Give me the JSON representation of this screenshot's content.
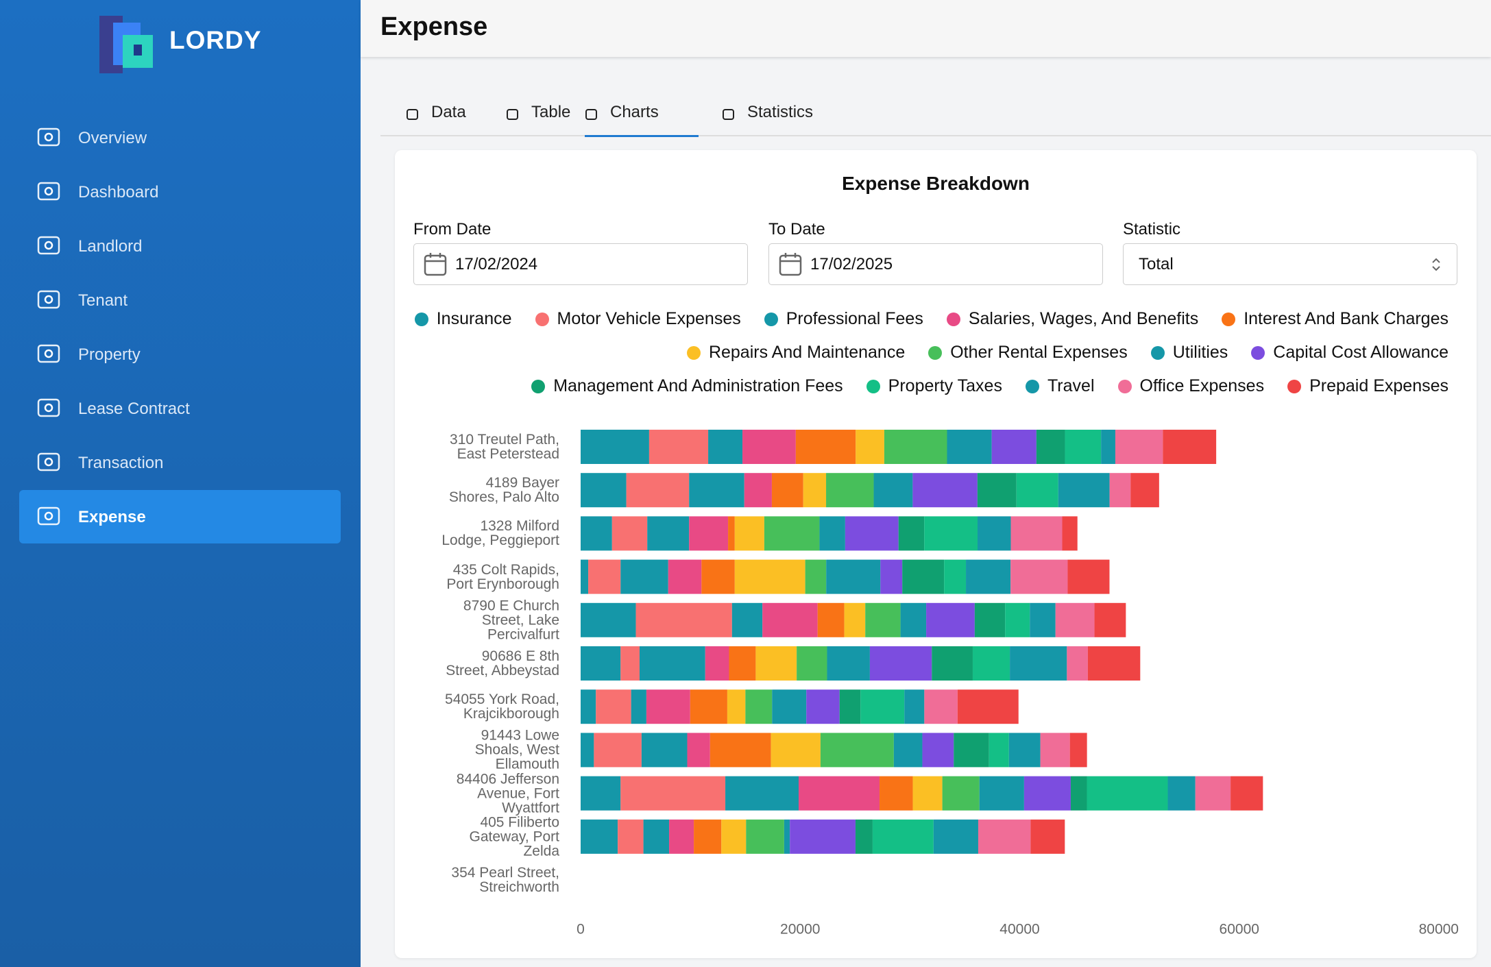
{
  "app": {
    "brand": "LORDY",
    "nav": [
      "Overview",
      "Dashboard",
      "Landlord",
      "Tenant",
      "Property",
      "Lease Contract",
      "Transaction",
      "Expense"
    ],
    "active": 7
  },
  "header": {
    "title": "Expense"
  },
  "tabs": {
    "items": [
      "Data",
      "Table",
      "Charts",
      "Statistics"
    ],
    "active": 2
  },
  "filters": {
    "from_label": "From Date",
    "from_value": "17/02/2024",
    "to_label": "To Date",
    "to_value": "17/02/2025",
    "statistic_label": "Statistic",
    "statistic_value": "Total"
  },
  "chart_data": {
    "type": "stacked-bar-horizontal",
    "title": "Expense Breakdown",
    "categories": [
      "310 Treutel Path, East Peterstead",
      "4189 Bayer Shores, Palo Alto",
      "1328 Milford Lodge, Peggieport",
      "435 Colt Rapids, Port Erynborough",
      "8790 E Church Street, Lake Percivalfurt",
      "90686 E 8th Street, Abbeystad",
      "54055 York Road, Krajcikborough",
      "91443 Lowe Shoals, West Ellamouth",
      "84406 Jefferson Avenue, Fort Wyattfort",
      "405 Filiberto Gateway, Port Zelda",
      "354 Pearl Street, Streichworth"
    ],
    "xlim": [
      0,
      80000
    ],
    "xticks": [
      0,
      20000,
      40000,
      60000,
      80000
    ],
    "grid": false,
    "series": [
      {
        "name": "Insurance",
        "color": "#1597a8",
        "values": [
          6240,
          4160,
          2860,
          690,
          5030,
          3640,
          1390,
          1210,
          3640,
          3380,
          0
        ]
      },
      {
        "name": "Motor Vehicle Expenses",
        "color": "#f87171",
        "values": [
          5380,
          5720,
          3210,
          2950,
          8760,
          1730,
          3210,
          4340,
          9540,
          2340,
          0
        ]
      },
      {
        "name": "Professional Fees",
        "color": "#1597a8",
        "values": [
          3120,
          5030,
          3810,
          4340,
          2770,
          5980,
          1390,
          4160,
          6680,
          2340,
          0
        ]
      },
      {
        "name": "Salaries, Wages, And Benefits",
        "color": "#e84a85",
        "values": [
          4860,
          2510,
          3550,
          3030,
          5030,
          2170,
          3990,
          2080,
          7370,
          2250,
          0
        ]
      },
      {
        "name": "Interest And Bank Charges",
        "color": "#f97316",
        "values": [
          5460,
          2860,
          610,
          3030,
          2430,
          2430,
          3380,
          5550,
          3030,
          2510,
          0
        ]
      },
      {
        "name": "Repairs And Maintenance",
        "color": "#fbbf24",
        "values": [
          2600,
          2080,
          2690,
          6420,
          1910,
          3730,
          1650,
          4510,
          2690,
          2250,
          0
        ]
      },
      {
        "name": "Other Rental Expenses",
        "color": "#47bf5a",
        "values": [
          5720,
          4340,
          5030,
          1910,
          3210,
          2770,
          2430,
          6680,
          3380,
          3470,
          0
        ]
      },
      {
        "name": "Utilities",
        "color": "#1597a8",
        "values": [
          4070,
          3550,
          2340,
          4940,
          2340,
          3900,
          3120,
          2600,
          4070,
          520,
          0
        ]
      },
      {
        "name": "Capital Cost Allowance",
        "color": "#7c4ddf",
        "values": [
          4070,
          5900,
          4860,
          1990,
          4420,
          5640,
          3030,
          2860,
          4250,
          5980,
          0
        ]
      },
      {
        "name": "Management And Administration Fees",
        "color": "#10a070",
        "values": [
          2600,
          3550,
          2340,
          3810,
          2770,
          3730,
          1910,
          3210,
          1470,
          1560,
          0
        ]
      },
      {
        "name": "Property Taxes",
        "color": "#14bf86",
        "values": [
          3290,
          3810,
          4860,
          1990,
          2250,
          3380,
          3990,
          1820,
          7370,
          5550,
          0
        ]
      },
      {
        "name": "Travel",
        "color": "#1597a8",
        "values": [
          1300,
          4680,
          3030,
          4070,
          2340,
          5200,
          1820,
          2860,
          2510,
          4070,
          0
        ]
      },
      {
        "name": "Office Expenses",
        "color": "#f06d97",
        "values": [
          4330,
          1910,
          4680,
          5200,
          3550,
          1910,
          3030,
          2690,
          3210,
          4770,
          0
        ]
      },
      {
        "name": "Prepaid Expenses",
        "color": "#ef4444",
        "values": [
          4860,
          2600,
          1390,
          3810,
          2860,
          4770,
          5550,
          1560,
          2950,
          3120,
          0
        ]
      }
    ]
  }
}
